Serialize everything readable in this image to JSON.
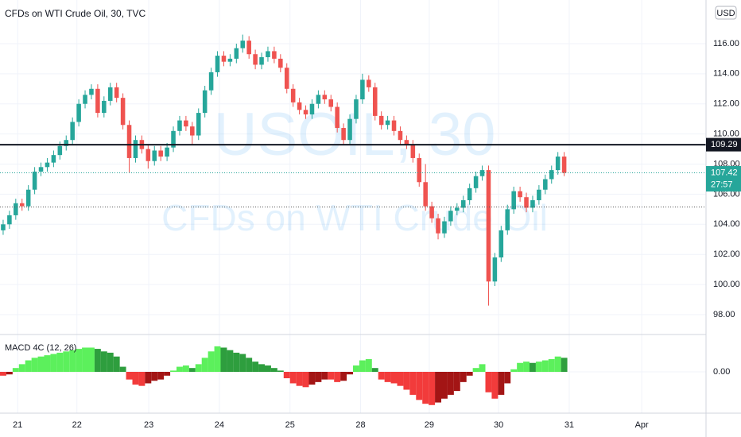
{
  "chart_data": {
    "type": "candlestick",
    "title": "CFDs on WTI Crude Oil, 30, TVC",
    "currency": "USD",
    "watermark": [
      "USOIL, 30",
      "CFDs on WTI Crude Oil"
    ],
    "up_color": "#26a69a",
    "down_color": "#ef5350",
    "grid": true,
    "xlim": [
      -0.5,
      111.5
    ],
    "xticks": [
      {
        "value": 2.3,
        "label": "21"
      },
      {
        "value": 11.7,
        "label": "22"
      },
      {
        "value": 23.1,
        "label": "23"
      },
      {
        "value": 34.3,
        "label": "24"
      },
      {
        "value": 45.5,
        "label": "25"
      },
      {
        "value": 56.7,
        "label": "28"
      },
      {
        "value": 67.6,
        "label": "29"
      },
      {
        "value": 78.6,
        "label": "30"
      },
      {
        "value": 89.8,
        "label": "31"
      },
      {
        "value": 101.3,
        "label": "Apr"
      }
    ],
    "ylim": [
      96.68,
      118.9
    ],
    "yticks": [
      {
        "value": 98,
        "label": "98.00"
      },
      {
        "value": 100,
        "label": "100.00"
      },
      {
        "value": 102,
        "label": "102.00"
      },
      {
        "value": 104,
        "label": "104.00"
      },
      {
        "value": 106,
        "label": "106.00"
      },
      {
        "value": 108,
        "label": "108.00"
      },
      {
        "value": 110,
        "label": "110.00"
      },
      {
        "value": 112,
        "label": "112.00"
      },
      {
        "value": 114,
        "label": "114.00"
      },
      {
        "value": 116,
        "label": "116.00"
      }
    ],
    "lines": [
      {
        "value": 109.29,
        "label": "109.29",
        "style": "solid",
        "color": "#131722"
      },
      {
        "value": 107.42,
        "label": "107.42",
        "countdown": "27:57",
        "style": "dotted",
        "color": "#26a69a"
      },
      {
        "value": 105.15,
        "style": "dotted",
        "color": "#555555"
      }
    ],
    "candles": [
      [
        103.6,
        104.3,
        103.3,
        104.0
      ],
      [
        104.0,
        104.9,
        103.7,
        104.6
      ],
      [
        104.6,
        105.7,
        104.3,
        105.4
      ],
      [
        105.4,
        105.7,
        104.9,
        105.2
      ],
      [
        105.2,
        106.6,
        104.9,
        106.3
      ],
      [
        106.3,
        107.8,
        106.0,
        107.5
      ],
      [
        107.5,
        108.1,
        107.2,
        107.8
      ],
      [
        107.8,
        108.4,
        107.5,
        108.1
      ],
      [
        108.1,
        108.9,
        107.8,
        108.6
      ],
      [
        108.6,
        109.5,
        108.3,
        109.2
      ],
      [
        109.2,
        109.9,
        108.9,
        109.6
      ],
      [
        109.6,
        111.1,
        109.3,
        110.8
      ],
      [
        110.8,
        112.3,
        110.5,
        112.0
      ],
      [
        112.0,
        112.9,
        111.7,
        112.6
      ],
      [
        112.6,
        113.3,
        112.3,
        113.0
      ],
      [
        113.0,
        113.3,
        111.1,
        111.4
      ],
      [
        111.4,
        112.5,
        111.1,
        112.2
      ],
      [
        112.2,
        113.4,
        111.9,
        113.1
      ],
      [
        113.1,
        113.4,
        112.1,
        112.4
      ],
      [
        112.4,
        112.7,
        110.3,
        110.6
      ],
      [
        110.6,
        110.9,
        107.4,
        108.4
      ],
      [
        108.4,
        109.9,
        108.1,
        109.6
      ],
      [
        109.6,
        109.9,
        108.7,
        109.0
      ],
      [
        109.0,
        109.3,
        107.7,
        108.2
      ],
      [
        108.2,
        109.2,
        107.9,
        108.9
      ],
      [
        108.9,
        109.2,
        108.2,
        108.5
      ],
      [
        108.5,
        109.4,
        108.2,
        109.1
      ],
      [
        109.1,
        110.5,
        108.8,
        110.2
      ],
      [
        110.2,
        111.2,
        109.9,
        110.9
      ],
      [
        110.9,
        111.2,
        110.2,
        110.5
      ],
      [
        110.5,
        110.8,
        109.3,
        109.9
      ],
      [
        109.9,
        111.7,
        109.6,
        111.4
      ],
      [
        111.4,
        113.2,
        111.1,
        112.9
      ],
      [
        112.9,
        114.4,
        112.6,
        114.1
      ],
      [
        114.1,
        115.5,
        113.8,
        115.2
      ],
      [
        115.2,
        115.5,
        114.5,
        114.8
      ],
      [
        114.8,
        115.3,
        114.5,
        115.0
      ],
      [
        115.0,
        116.0,
        114.7,
        115.7
      ],
      [
        115.7,
        116.6,
        115.4,
        116.2
      ],
      [
        116.2,
        116.5,
        115.0,
        115.3
      ],
      [
        115.3,
        115.6,
        114.3,
        114.6
      ],
      [
        114.6,
        115.4,
        114.3,
        115.1
      ],
      [
        115.1,
        115.8,
        114.8,
        115.5
      ],
      [
        115.5,
        115.8,
        114.7,
        115.0
      ],
      [
        115.0,
        115.3,
        114.1,
        114.4
      ],
      [
        114.4,
        114.7,
        112.7,
        113.0
      ],
      [
        113.0,
        113.3,
        111.8,
        112.1
      ],
      [
        112.1,
        112.4,
        111.3,
        111.6
      ],
      [
        111.6,
        111.9,
        111.0,
        111.3
      ],
      [
        111.3,
        112.3,
        111.0,
        112.0
      ],
      [
        112.0,
        112.9,
        111.7,
        112.6
      ],
      [
        112.6,
        112.9,
        112.0,
        112.3
      ],
      [
        112.3,
        112.6,
        111.5,
        111.8
      ],
      [
        111.8,
        112.1,
        110.1,
        110.4
      ],
      [
        110.4,
        110.7,
        109.3,
        109.6
      ],
      [
        109.6,
        111.3,
        109.3,
        111.0
      ],
      [
        111.0,
        112.6,
        110.7,
        112.3
      ],
      [
        112.3,
        114.0,
        112.0,
        113.6
      ],
      [
        113.6,
        113.9,
        112.8,
        113.1
      ],
      [
        113.1,
        113.4,
        110.9,
        111.2
      ],
      [
        111.2,
        111.5,
        110.3,
        110.6
      ],
      [
        110.6,
        111.2,
        110.3,
        110.9
      ],
      [
        110.9,
        111.2,
        109.9,
        110.2
      ],
      [
        110.2,
        110.5,
        109.3,
        109.6
      ],
      [
        109.6,
        109.9,
        109.0,
        109.3
      ],
      [
        109.3,
        109.6,
        108.1,
        108.4
      ],
      [
        108.4,
        108.7,
        106.5,
        106.8
      ],
      [
        106.8,
        108.0,
        104.9,
        105.2
      ],
      [
        105.2,
        105.5,
        104.1,
        104.4
      ],
      [
        104.4,
        104.7,
        103.0,
        103.4
      ],
      [
        103.4,
        104.5,
        103.1,
        104.2
      ],
      [
        104.2,
        105.2,
        103.9,
        104.9
      ],
      [
        104.9,
        105.4,
        104.6,
        105.1
      ],
      [
        105.1,
        105.9,
        104.8,
        105.6
      ],
      [
        105.6,
        106.7,
        105.3,
        106.4
      ],
      [
        106.4,
        107.5,
        106.1,
        107.2
      ],
      [
        107.2,
        107.9,
        106.9,
        107.6
      ],
      [
        107.6,
        107.9,
        98.6,
        100.2
      ],
      [
        100.2,
        102.1,
        99.9,
        101.8
      ],
      [
        101.8,
        103.9,
        101.5,
        103.6
      ],
      [
        103.6,
        105.3,
        103.3,
        105.0
      ],
      [
        105.0,
        106.5,
        104.7,
        106.2
      ],
      [
        106.2,
        106.5,
        105.5,
        105.8
      ],
      [
        105.8,
        106.1,
        104.8,
        105.1
      ],
      [
        105.1,
        105.9,
        104.8,
        105.6
      ],
      [
        105.6,
        106.6,
        105.3,
        106.3
      ],
      [
        106.3,
        107.3,
        106.0,
        107.0
      ],
      [
        107.0,
        107.9,
        106.7,
        107.6
      ],
      [
        107.6,
        108.8,
        107.3,
        108.5
      ],
      [
        108.5,
        108.8,
        107.2,
        107.42
      ]
    ],
    "indicator": {
      "name": "MACD 4C (12, 26)",
      "ylim": [
        -2.8,
        2.8
      ],
      "yticks": [
        {
          "value": 0,
          "label": "0.00"
        }
      ],
      "colors": {
        "up_rising": "#5cf05c",
        "up_falling": "#2e9e3e",
        "down_falling": "#f23b3b",
        "down_rising": "#a31515"
      },
      "values": [
        -0.3,
        -0.2,
        0.3,
        0.6,
        0.9,
        1.1,
        1.2,
        1.3,
        1.4,
        1.5,
        1.6,
        1.7,
        1.8,
        1.9,
        1.9,
        1.8,
        1.6,
        1.5,
        1.2,
        0.4,
        -0.6,
        -1.0,
        -1.1,
        -0.9,
        -0.7,
        -0.6,
        -0.3,
        0.1,
        0.4,
        0.5,
        0.3,
        0.6,
        1.1,
        1.6,
        2.0,
        1.9,
        1.7,
        1.5,
        1.4,
        1.1,
        0.8,
        0.6,
        0.5,
        0.3,
        0.1,
        -0.5,
        -0.9,
        -1.1,
        -1.2,
        -1.0,
        -0.8,
        -0.6,
        -0.6,
        -0.8,
        -0.7,
        -0.2,
        0.5,
        0.9,
        1.0,
        0.3,
        -0.6,
        -0.8,
        -0.9,
        -1.1,
        -1.4,
        -1.8,
        -2.2,
        -2.5,
        -2.6,
        -2.4,
        -2.1,
        -1.8,
        -1.5,
        -0.8,
        -0.3,
        0.3,
        0.6,
        -1.6,
        -2.1,
        -1.8,
        -0.9,
        0.2,
        0.7,
        0.8,
        0.7,
        0.8,
        0.9,
        1.0,
        1.2,
        1.1
      ]
    }
  }
}
